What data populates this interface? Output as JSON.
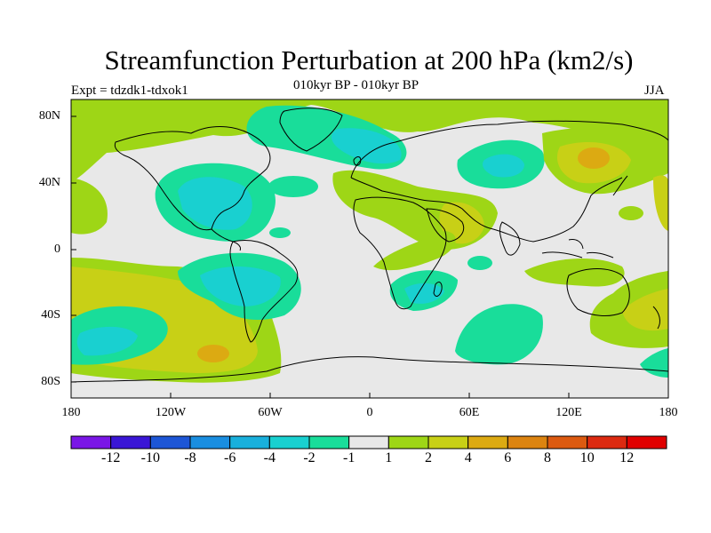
{
  "title": "Streamfunction Perturbation at 200 hPa (km2/s)",
  "subtitle_center": "010kyr BP - 010kyr BP",
  "subtitle_left": "Expt = tdzdk1-tdxok1",
  "subtitle_right": "JJA",
  "y_ticks": [
    "80N",
    "40N",
    "0",
    "40S",
    "80S"
  ],
  "x_ticks": [
    "180",
    "120W",
    "60W",
    "0",
    "60E",
    "120E",
    "180"
  ],
  "colorbar": {
    "labels": [
      "-12",
      "-10",
      "-8",
      "-6",
      "-4",
      "-2",
      "-1",
      "1",
      "2",
      "4",
      "6",
      "8",
      "10",
      "12"
    ],
    "colors": [
      "#7a16e6",
      "#3a16d6",
      "#1d56d6",
      "#1a8ee0",
      "#19b0dc",
      "#19d0d0",
      "#19dd9a",
      "#e8e8e8",
      "#9ed616",
      "#c8d016",
      "#dcaa12",
      "#dc8410",
      "#dc5a10",
      "#dc2a10",
      "#e00000"
    ]
  },
  "colors": {
    "neutral": "#e8e8e8",
    "pos1": "#9ed616",
    "pos2": "#c8d016",
    "pos3": "#dcaa12",
    "neg1": "#19dd9a",
    "neg2": "#19d0d0"
  }
}
